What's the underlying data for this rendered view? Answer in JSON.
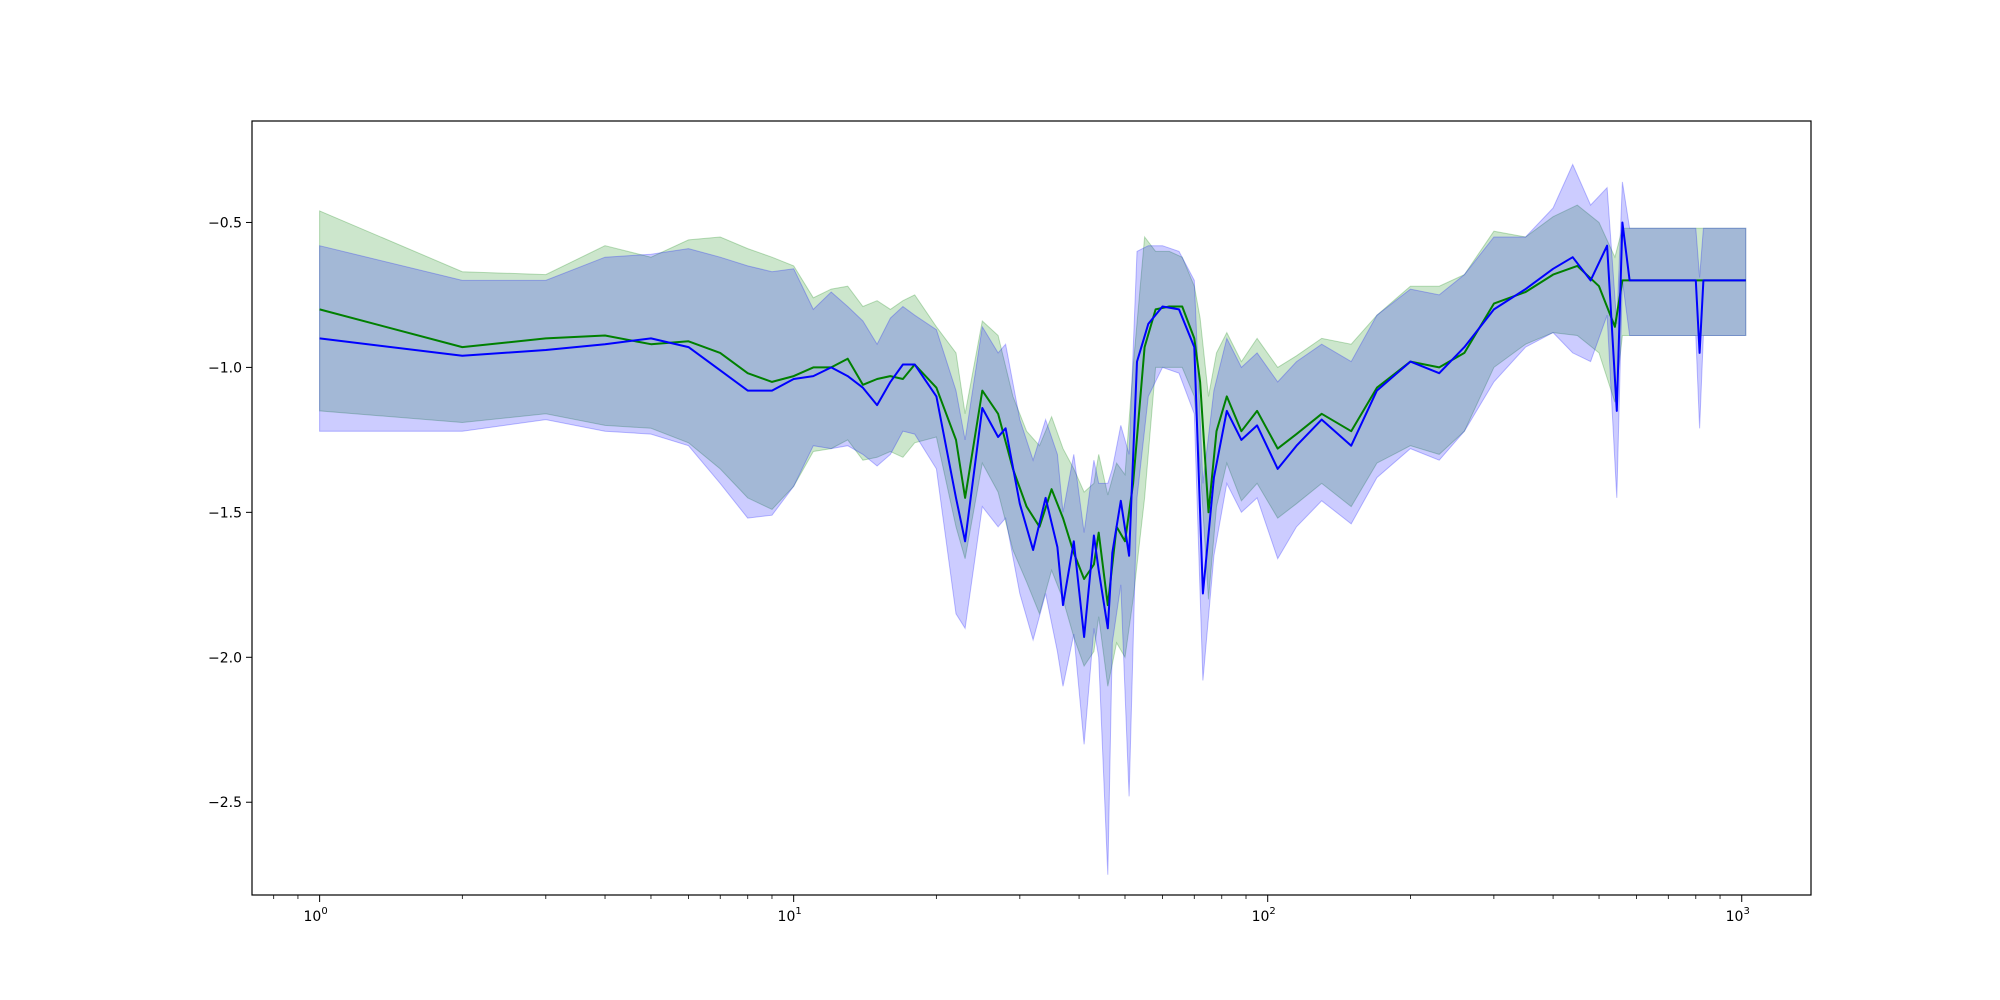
{
  "chart_data": {
    "type": "line",
    "title": "",
    "xlabel": "",
    "ylabel": "",
    "x_scale": "log",
    "xlim": [
      0.72,
      1400
    ],
    "ylim": [
      -2.82,
      -0.15
    ],
    "grid": false,
    "y_ticks": [
      -2.5,
      -2.0,
      -1.5,
      -1.0,
      -0.5
    ],
    "y_tick_labels": [
      "−2.5",
      "−2.0",
      "−1.5",
      "−1.0",
      "−0.5"
    ],
    "x_ticks": [
      1,
      10,
      100,
      1000
    ],
    "x_tick_labels": [
      {
        "base": "10",
        "exp": "0"
      },
      {
        "base": "10",
        "exp": "1"
      },
      {
        "base": "10",
        "exp": "2"
      },
      {
        "base": "10",
        "exp": "3"
      }
    ],
    "colors": {
      "green_line": "#008000",
      "green_band": "#008000",
      "blue_line": "#0000ff",
      "blue_band": "#0000ff",
      "overlap_band": "#9fb2d6"
    },
    "series": [
      {
        "color": "green",
        "band_opacity": 0.2,
        "points": [
          [
            1,
            -0.8,
            -0.46,
            -1.15
          ],
          [
            2,
            -0.93,
            -0.67,
            -1.19
          ],
          [
            3,
            -0.9,
            -0.68,
            -1.16
          ],
          [
            4,
            -0.89,
            -0.58,
            -1.2
          ],
          [
            5,
            -0.92,
            -0.62,
            -1.21
          ],
          [
            6,
            -0.91,
            -0.56,
            -1.26
          ],
          [
            7,
            -0.95,
            -0.55,
            -1.35
          ],
          [
            8,
            -1.02,
            -0.59,
            -1.45
          ],
          [
            9,
            -1.05,
            -0.62,
            -1.49
          ],
          [
            10,
            -1.03,
            -0.65,
            -1.41
          ],
          [
            11,
            -1.0,
            -0.76,
            -1.29
          ],
          [
            12,
            -1.0,
            -0.73,
            -1.28
          ],
          [
            13,
            -0.97,
            -0.72,
            -1.25
          ],
          [
            14,
            -1.06,
            -0.79,
            -1.32
          ],
          [
            15,
            -1.04,
            -0.77,
            -1.31
          ],
          [
            16,
            -1.03,
            -0.8,
            -1.29
          ],
          [
            17,
            -1.04,
            -0.77,
            -1.31
          ],
          [
            18,
            -0.99,
            -0.75,
            -1.26
          ],
          [
            20,
            -1.07,
            -0.86,
            -1.24
          ],
          [
            22,
            -1.25,
            -0.95,
            -1.55
          ],
          [
            23,
            -1.45,
            -1.16,
            -1.66
          ],
          [
            25,
            -1.08,
            -0.84,
            -1.33
          ],
          [
            27,
            -1.16,
            -0.89,
            -1.43
          ],
          [
            29,
            -1.35,
            -1.1,
            -1.63
          ],
          [
            31,
            -1.48,
            -1.22,
            -1.74
          ],
          [
            33,
            -1.55,
            -1.27,
            -1.85
          ],
          [
            35,
            -1.42,
            -1.17,
            -1.7
          ],
          [
            37,
            -1.52,
            -1.28,
            -1.8
          ],
          [
            39,
            -1.64,
            -1.35,
            -1.93
          ],
          [
            41,
            -1.73,
            -1.43,
            -2.03
          ],
          [
            43,
            -1.68,
            -1.4,
            -1.98
          ],
          [
            44,
            -1.57,
            -1.3,
            -1.86
          ],
          [
            46,
            -1.82,
            -1.44,
            -2.1
          ],
          [
            48,
            -1.55,
            -1.33,
            -1.95
          ],
          [
            50,
            -1.6,
            -1.37,
            -2.0
          ],
          [
            52,
            -1.4,
            -1.0,
            -1.8
          ],
          [
            55,
            -0.93,
            -0.55,
            -1.45
          ],
          [
            58,
            -0.8,
            -0.6,
            -1.0
          ],
          [
            62,
            -0.79,
            -0.6,
            -1.0
          ],
          [
            66,
            -0.79,
            -0.62,
            -1.0
          ],
          [
            70,
            -0.9,
            -0.72,
            -1.1
          ],
          [
            72,
            -1.05,
            -0.83,
            -1.34
          ],
          [
            75,
            -1.5,
            -1.1,
            -1.8
          ],
          [
            78,
            -1.22,
            -0.95,
            -1.48
          ],
          [
            82,
            -1.1,
            -0.88,
            -1.33
          ],
          [
            88,
            -1.22,
            -0.98,
            -1.46
          ],
          [
            95,
            -1.15,
            -0.9,
            -1.4
          ],
          [
            105,
            -1.28,
            -1.0,
            -1.52
          ],
          [
            115,
            -1.23,
            -0.96,
            -1.47
          ],
          [
            130,
            -1.16,
            -0.9,
            -1.4
          ],
          [
            150,
            -1.22,
            -0.92,
            -1.48
          ],
          [
            170,
            -1.07,
            -0.82,
            -1.33
          ],
          [
            200,
            -0.98,
            -0.72,
            -1.27
          ],
          [
            230,
            -1.0,
            -0.72,
            -1.3
          ],
          [
            260,
            -0.95,
            -0.68,
            -1.22
          ],
          [
            300,
            -0.78,
            -0.53,
            -1.0
          ],
          [
            350,
            -0.74,
            -0.55,
            -0.92
          ],
          [
            400,
            -0.68,
            -0.48,
            -0.88
          ],
          [
            450,
            -0.65,
            -0.44,
            -0.89
          ],
          [
            500,
            -0.72,
            -0.5,
            -0.95
          ],
          [
            540,
            -0.86,
            -0.62,
            -1.12
          ],
          [
            560,
            -0.7,
            -0.52,
            -0.89
          ],
          [
            700,
            -0.7,
            -0.52,
            -0.89
          ],
          [
            1020,
            -0.7,
            -0.52,
            -0.89
          ]
        ]
      },
      {
        "color": "blue",
        "band_opacity": 0.2,
        "points": [
          [
            1,
            -0.9,
            -0.58,
            -1.22
          ],
          [
            2,
            -0.96,
            -0.7,
            -1.22
          ],
          [
            3,
            -0.94,
            -0.7,
            -1.18
          ],
          [
            4,
            -0.92,
            -0.62,
            -1.22
          ],
          [
            5,
            -0.9,
            -0.61,
            -1.23
          ],
          [
            6,
            -0.93,
            -0.59,
            -1.27
          ],
          [
            7,
            -1.01,
            -0.62,
            -1.4
          ],
          [
            8,
            -1.08,
            -0.65,
            -1.52
          ],
          [
            9,
            -1.08,
            -0.67,
            -1.51
          ],
          [
            10,
            -1.04,
            -0.66,
            -1.41
          ],
          [
            11,
            -1.03,
            -0.8,
            -1.27
          ],
          [
            12,
            -1.0,
            -0.74,
            -1.28
          ],
          [
            13,
            -1.03,
            -0.79,
            -1.27
          ],
          [
            14,
            -1.07,
            -0.84,
            -1.3
          ],
          [
            15,
            -1.13,
            -0.92,
            -1.34
          ],
          [
            16,
            -1.05,
            -0.83,
            -1.3
          ],
          [
            17,
            -0.99,
            -0.79,
            -1.22
          ],
          [
            18,
            -0.99,
            -0.82,
            -1.23
          ],
          [
            20,
            -1.1,
            -0.87,
            -1.35
          ],
          [
            22,
            -1.45,
            -1.08,
            -1.85
          ],
          [
            23,
            -1.6,
            -1.25,
            -1.9
          ],
          [
            25,
            -1.14,
            -0.86,
            -1.48
          ],
          [
            27,
            -1.24,
            -0.95,
            -1.55
          ],
          [
            28,
            -1.21,
            -0.92,
            -1.52
          ],
          [
            30,
            -1.47,
            -1.18,
            -1.78
          ],
          [
            32,
            -1.63,
            -1.32,
            -1.94
          ],
          [
            34,
            -1.45,
            -1.18,
            -1.78
          ],
          [
            36,
            -1.62,
            -1.3,
            -1.98
          ],
          [
            37,
            -1.82,
            -1.5,
            -2.1
          ],
          [
            39,
            -1.6,
            -1.3,
            -1.92
          ],
          [
            41,
            -1.93,
            -1.57,
            -2.3
          ],
          [
            43,
            -1.58,
            -1.32,
            -1.9
          ],
          [
            44,
            -1.7,
            -1.4,
            -2.0
          ],
          [
            46,
            -1.9,
            -1.4,
            -2.75
          ],
          [
            47,
            -1.64,
            -1.35,
            -1.95
          ],
          [
            49,
            -1.46,
            -1.2,
            -1.75
          ],
          [
            51,
            -1.65,
            -1.3,
            -2.48
          ],
          [
            53,
            -0.98,
            -0.6,
            -1.45
          ],
          [
            56,
            -0.85,
            -0.58,
            -1.1
          ],
          [
            60,
            -0.79,
            -0.58,
            -1.0
          ],
          [
            65,
            -0.8,
            -0.6,
            -1.02
          ],
          [
            70,
            -0.93,
            -0.7,
            -1.16
          ],
          [
            73,
            -1.78,
            -1.4,
            -2.08
          ],
          [
            77,
            -1.38,
            -1.08,
            -1.65
          ],
          [
            82,
            -1.15,
            -0.9,
            -1.4
          ],
          [
            88,
            -1.25,
            -1.0,
            -1.5
          ],
          [
            95,
            -1.2,
            -0.95,
            -1.45
          ],
          [
            105,
            -1.35,
            -1.05,
            -1.66
          ],
          [
            115,
            -1.27,
            -0.98,
            -1.55
          ],
          [
            130,
            -1.18,
            -0.92,
            -1.46
          ],
          [
            150,
            -1.27,
            -0.98,
            -1.54
          ],
          [
            170,
            -1.08,
            -0.82,
            -1.38
          ],
          [
            200,
            -0.98,
            -0.73,
            -1.28
          ],
          [
            230,
            -1.02,
            -0.75,
            -1.32
          ],
          [
            260,
            -0.93,
            -0.68,
            -1.22
          ],
          [
            300,
            -0.8,
            -0.55,
            -1.05
          ],
          [
            350,
            -0.73,
            -0.55,
            -0.93
          ],
          [
            400,
            -0.66,
            -0.45,
            -0.88
          ],
          [
            440,
            -0.62,
            -0.3,
            -0.95
          ],
          [
            480,
            -0.7,
            -0.44,
            -0.98
          ],
          [
            520,
            -0.58,
            -0.38,
            -0.82
          ],
          [
            545,
            -1.15,
            -0.85,
            -1.45
          ],
          [
            560,
            -0.5,
            -0.36,
            -0.7
          ],
          [
            580,
            -0.7,
            -0.52,
            -0.89
          ],
          [
            800,
            -0.7,
            -0.52,
            -0.89
          ],
          [
            815,
            -0.95,
            -0.69,
            -1.21
          ],
          [
            830,
            -0.7,
            -0.52,
            -0.89
          ],
          [
            1020,
            -0.7,
            -0.52,
            -0.89
          ]
        ]
      }
    ]
  }
}
